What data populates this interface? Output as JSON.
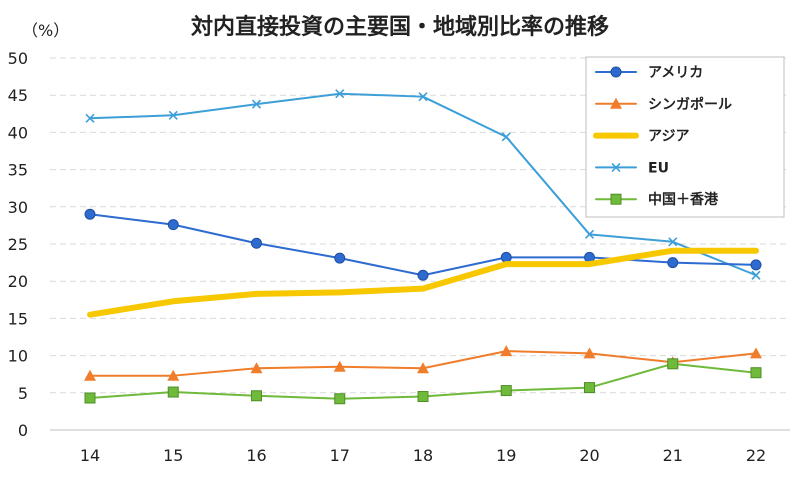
{
  "chart_data": {
    "type": "line",
    "title": "対内直接投資の主要国・地域別比率の推移",
    "ylabel": "（%）",
    "xlabel": "",
    "categories": [
      "14",
      "15",
      "16",
      "17",
      "18",
      "19",
      "20",
      "21",
      "22"
    ],
    "ylim": [
      0,
      50
    ],
    "yticks": [
      0,
      5,
      10,
      15,
      20,
      25,
      30,
      35,
      40,
      45,
      50
    ],
    "grid": true,
    "legend_position": "top-right",
    "series": [
      {
        "name": "アメリカ",
        "color": "#2e6bd0",
        "marker": "circle",
        "values": [
          29.0,
          27.6,
          25.1,
          23.1,
          20.8,
          23.2,
          23.2,
          22.5,
          22.2
        ]
      },
      {
        "name": "シンガポール",
        "color": "#ef7d2b",
        "marker": "triangle",
        "values": [
          7.3,
          7.3,
          8.3,
          8.5,
          8.3,
          10.6,
          10.3,
          9.1,
          10.3
        ]
      },
      {
        "name": "アジア",
        "color": "#f7c800",
        "marker": "none",
        "values": [
          15.5,
          17.3,
          18.3,
          18.5,
          19.0,
          22.3,
          22.3,
          24.1,
          24.1
        ]
      },
      {
        "name": "EU",
        "color": "#3d9fd8",
        "marker": "x",
        "values": [
          41.9,
          42.3,
          43.8,
          45.2,
          44.8,
          39.4,
          26.3,
          25.3,
          20.8
        ]
      },
      {
        "name": "中国＋香港",
        "color": "#6fb93b",
        "marker": "square",
        "values": [
          4.3,
          5.1,
          4.6,
          4.2,
          4.5,
          5.3,
          5.7,
          8.9,
          7.7
        ]
      }
    ]
  }
}
